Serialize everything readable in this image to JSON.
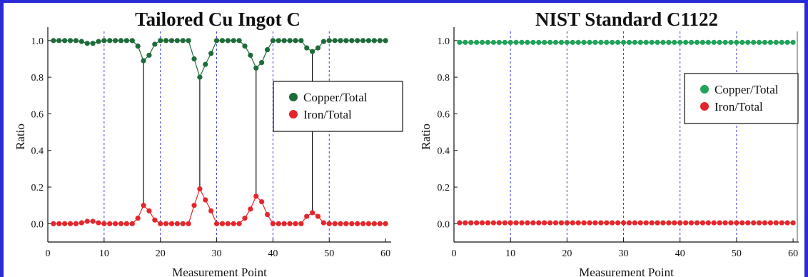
{
  "colors": {
    "copper_left": "#1e6b3a",
    "copper_right": "#22a35a",
    "iron": "#e3262c",
    "frame": "#2b2bd6",
    "dashed": "#3a3ad9"
  },
  "chart_data": [
    {
      "type": "scatter",
      "title": "Tailored Cu Ingot C",
      "xlabel": "Measurement Point",
      "ylabel": "Ratio",
      "xlim": [
        0,
        61
      ],
      "ylim": [
        -0.1,
        1.05
      ],
      "xticks": [
        "0",
        "10",
        "20",
        "30",
        "40",
        "50",
        "60"
      ],
      "yticks": [
        "0.0",
        "0.2",
        "0.4",
        "0.6",
        "0.8",
        "1.0"
      ],
      "dashed_x": [
        10,
        20,
        30,
        40,
        50
      ],
      "connector_x": [
        17,
        27,
        37,
        47
      ],
      "legend_position": "center-right",
      "series": [
        {
          "name": "Copper/Total",
          "x": [
            1,
            2,
            3,
            4,
            5,
            6,
            7,
            8,
            9,
            10,
            11,
            12,
            13,
            14,
            15,
            16,
            17,
            18,
            19,
            20,
            21,
            22,
            23,
            24,
            25,
            26,
            27,
            28,
            29,
            30,
            31,
            32,
            33,
            34,
            35,
            36,
            37,
            38,
            39,
            40,
            41,
            42,
            43,
            44,
            45,
            46,
            47,
            48,
            49,
            50,
            51,
            52,
            53,
            54,
            55,
            56,
            57,
            58,
            59,
            60
          ],
          "y": [
            1.0,
            1.0,
            1.0,
            1.0,
            1.0,
            0.995,
            0.985,
            0.985,
            0.995,
            1.0,
            1.0,
            1.0,
            1.0,
            1.0,
            1.0,
            0.97,
            0.89,
            0.92,
            0.98,
            1.0,
            1.0,
            1.0,
            1.0,
            1.0,
            1.0,
            0.9,
            0.8,
            0.87,
            0.93,
            1.0,
            1.0,
            1.0,
            1.0,
            1.0,
            0.97,
            0.92,
            0.85,
            0.88,
            0.95,
            1.0,
            1.0,
            1.0,
            1.0,
            1.0,
            1.0,
            0.96,
            0.94,
            0.96,
            0.995,
            1.0,
            1.0,
            1.0,
            1.0,
            1.0,
            1.0,
            1.0,
            1.0,
            1.0,
            1.0,
            1.0
          ]
        },
        {
          "name": "Iron/Total",
          "x": [
            1,
            2,
            3,
            4,
            5,
            6,
            7,
            8,
            9,
            10,
            11,
            12,
            13,
            14,
            15,
            16,
            17,
            18,
            19,
            20,
            21,
            22,
            23,
            24,
            25,
            26,
            27,
            28,
            29,
            30,
            31,
            32,
            33,
            34,
            35,
            36,
            37,
            38,
            39,
            40,
            41,
            42,
            43,
            44,
            45,
            46,
            47,
            48,
            49,
            50,
            51,
            52,
            53,
            54,
            55,
            56,
            57,
            58,
            59,
            60
          ],
          "y": [
            0,
            0,
            0,
            0,
            0,
            0.005,
            0.013,
            0.013,
            0.005,
            0,
            0,
            0,
            0,
            0,
            0,
            0.03,
            0.1,
            0.07,
            0.02,
            0,
            0,
            0,
            0,
            0,
            0,
            0.1,
            0.19,
            0.13,
            0.07,
            0,
            0,
            0,
            0,
            0,
            0.03,
            0.08,
            0.15,
            0.12,
            0.05,
            0,
            0,
            0,
            0,
            0,
            0,
            0.04,
            0.06,
            0.04,
            0.005,
            0,
            0,
            0,
            0,
            0,
            0,
            0,
            0,
            0,
            0,
            0
          ]
        }
      ]
    },
    {
      "type": "scatter",
      "title": "NIST Standard C1122",
      "xlabel": "Measurement Point",
      "ylabel": "Ratio",
      "xlim": [
        0,
        61
      ],
      "ylim": [
        -0.1,
        1.05
      ],
      "xticks": [
        "0",
        "10",
        "20",
        "30",
        "40",
        "50",
        "60"
      ],
      "yticks": [
        "0.0",
        "0.2",
        "0.4",
        "0.6",
        "0.8",
        "1.0"
      ],
      "dashed_x": [
        10,
        20,
        30,
        40,
        50
      ],
      "connector_x": [],
      "legend_position": "center-right",
      "series": [
        {
          "name": "Copper/Total",
          "x": [
            1,
            2,
            3,
            4,
            5,
            6,
            7,
            8,
            9,
            10,
            11,
            12,
            13,
            14,
            15,
            16,
            17,
            18,
            19,
            20,
            21,
            22,
            23,
            24,
            25,
            26,
            27,
            28,
            29,
            30,
            31,
            32,
            33,
            34,
            35,
            36,
            37,
            38,
            39,
            40,
            41,
            42,
            43,
            44,
            45,
            46,
            47,
            48,
            49,
            50,
            51,
            52,
            53,
            54,
            55,
            56,
            57,
            58,
            59,
            60
          ],
          "y": [
            0.99,
            0.99,
            0.99,
            0.99,
            0.99,
            0.99,
            0.99,
            0.99,
            0.99,
            0.99,
            0.99,
            0.99,
            0.99,
            0.99,
            0.99,
            0.99,
            0.99,
            0.99,
            0.99,
            0.99,
            0.99,
            0.99,
            0.99,
            0.99,
            0.99,
            0.99,
            0.99,
            0.99,
            0.99,
            0.99,
            0.99,
            0.99,
            0.99,
            0.99,
            0.99,
            0.99,
            0.99,
            0.99,
            0.99,
            0.99,
            0.99,
            0.99,
            0.99,
            0.99,
            0.99,
            0.99,
            0.99,
            0.99,
            0.99,
            0.99,
            0.99,
            0.99,
            0.99,
            0.99,
            0.99,
            0.99,
            0.99,
            0.99,
            0.99,
            0.99
          ]
        },
        {
          "name": "Iron/Total",
          "x": [
            1,
            2,
            3,
            4,
            5,
            6,
            7,
            8,
            9,
            10,
            11,
            12,
            13,
            14,
            15,
            16,
            17,
            18,
            19,
            20,
            21,
            22,
            23,
            24,
            25,
            26,
            27,
            28,
            29,
            30,
            31,
            32,
            33,
            34,
            35,
            36,
            37,
            38,
            39,
            40,
            41,
            42,
            43,
            44,
            45,
            46,
            47,
            48,
            49,
            50,
            51,
            52,
            53,
            54,
            55,
            56,
            57,
            58,
            59,
            60
          ],
          "y": [
            0.005,
            0.005,
            0.005,
            0.005,
            0.005,
            0.005,
            0.005,
            0.005,
            0.005,
            0.005,
            0.005,
            0.005,
            0.005,
            0.005,
            0.005,
            0.005,
            0.005,
            0.005,
            0.005,
            0.005,
            0.005,
            0.005,
            0.005,
            0.005,
            0.005,
            0.005,
            0.005,
            0.005,
            0.005,
            0.005,
            0.005,
            0.005,
            0.005,
            0.005,
            0.005,
            0.005,
            0.005,
            0.005,
            0.005,
            0.005,
            0.005,
            0.005,
            0.005,
            0.005,
            0.005,
            0.005,
            0.005,
            0.005,
            0.005,
            0.005,
            0.005,
            0.005,
            0.005,
            0.005,
            0.005,
            0.005,
            0.005,
            0.005,
            0.005,
            0.005
          ]
        }
      ]
    }
  ]
}
